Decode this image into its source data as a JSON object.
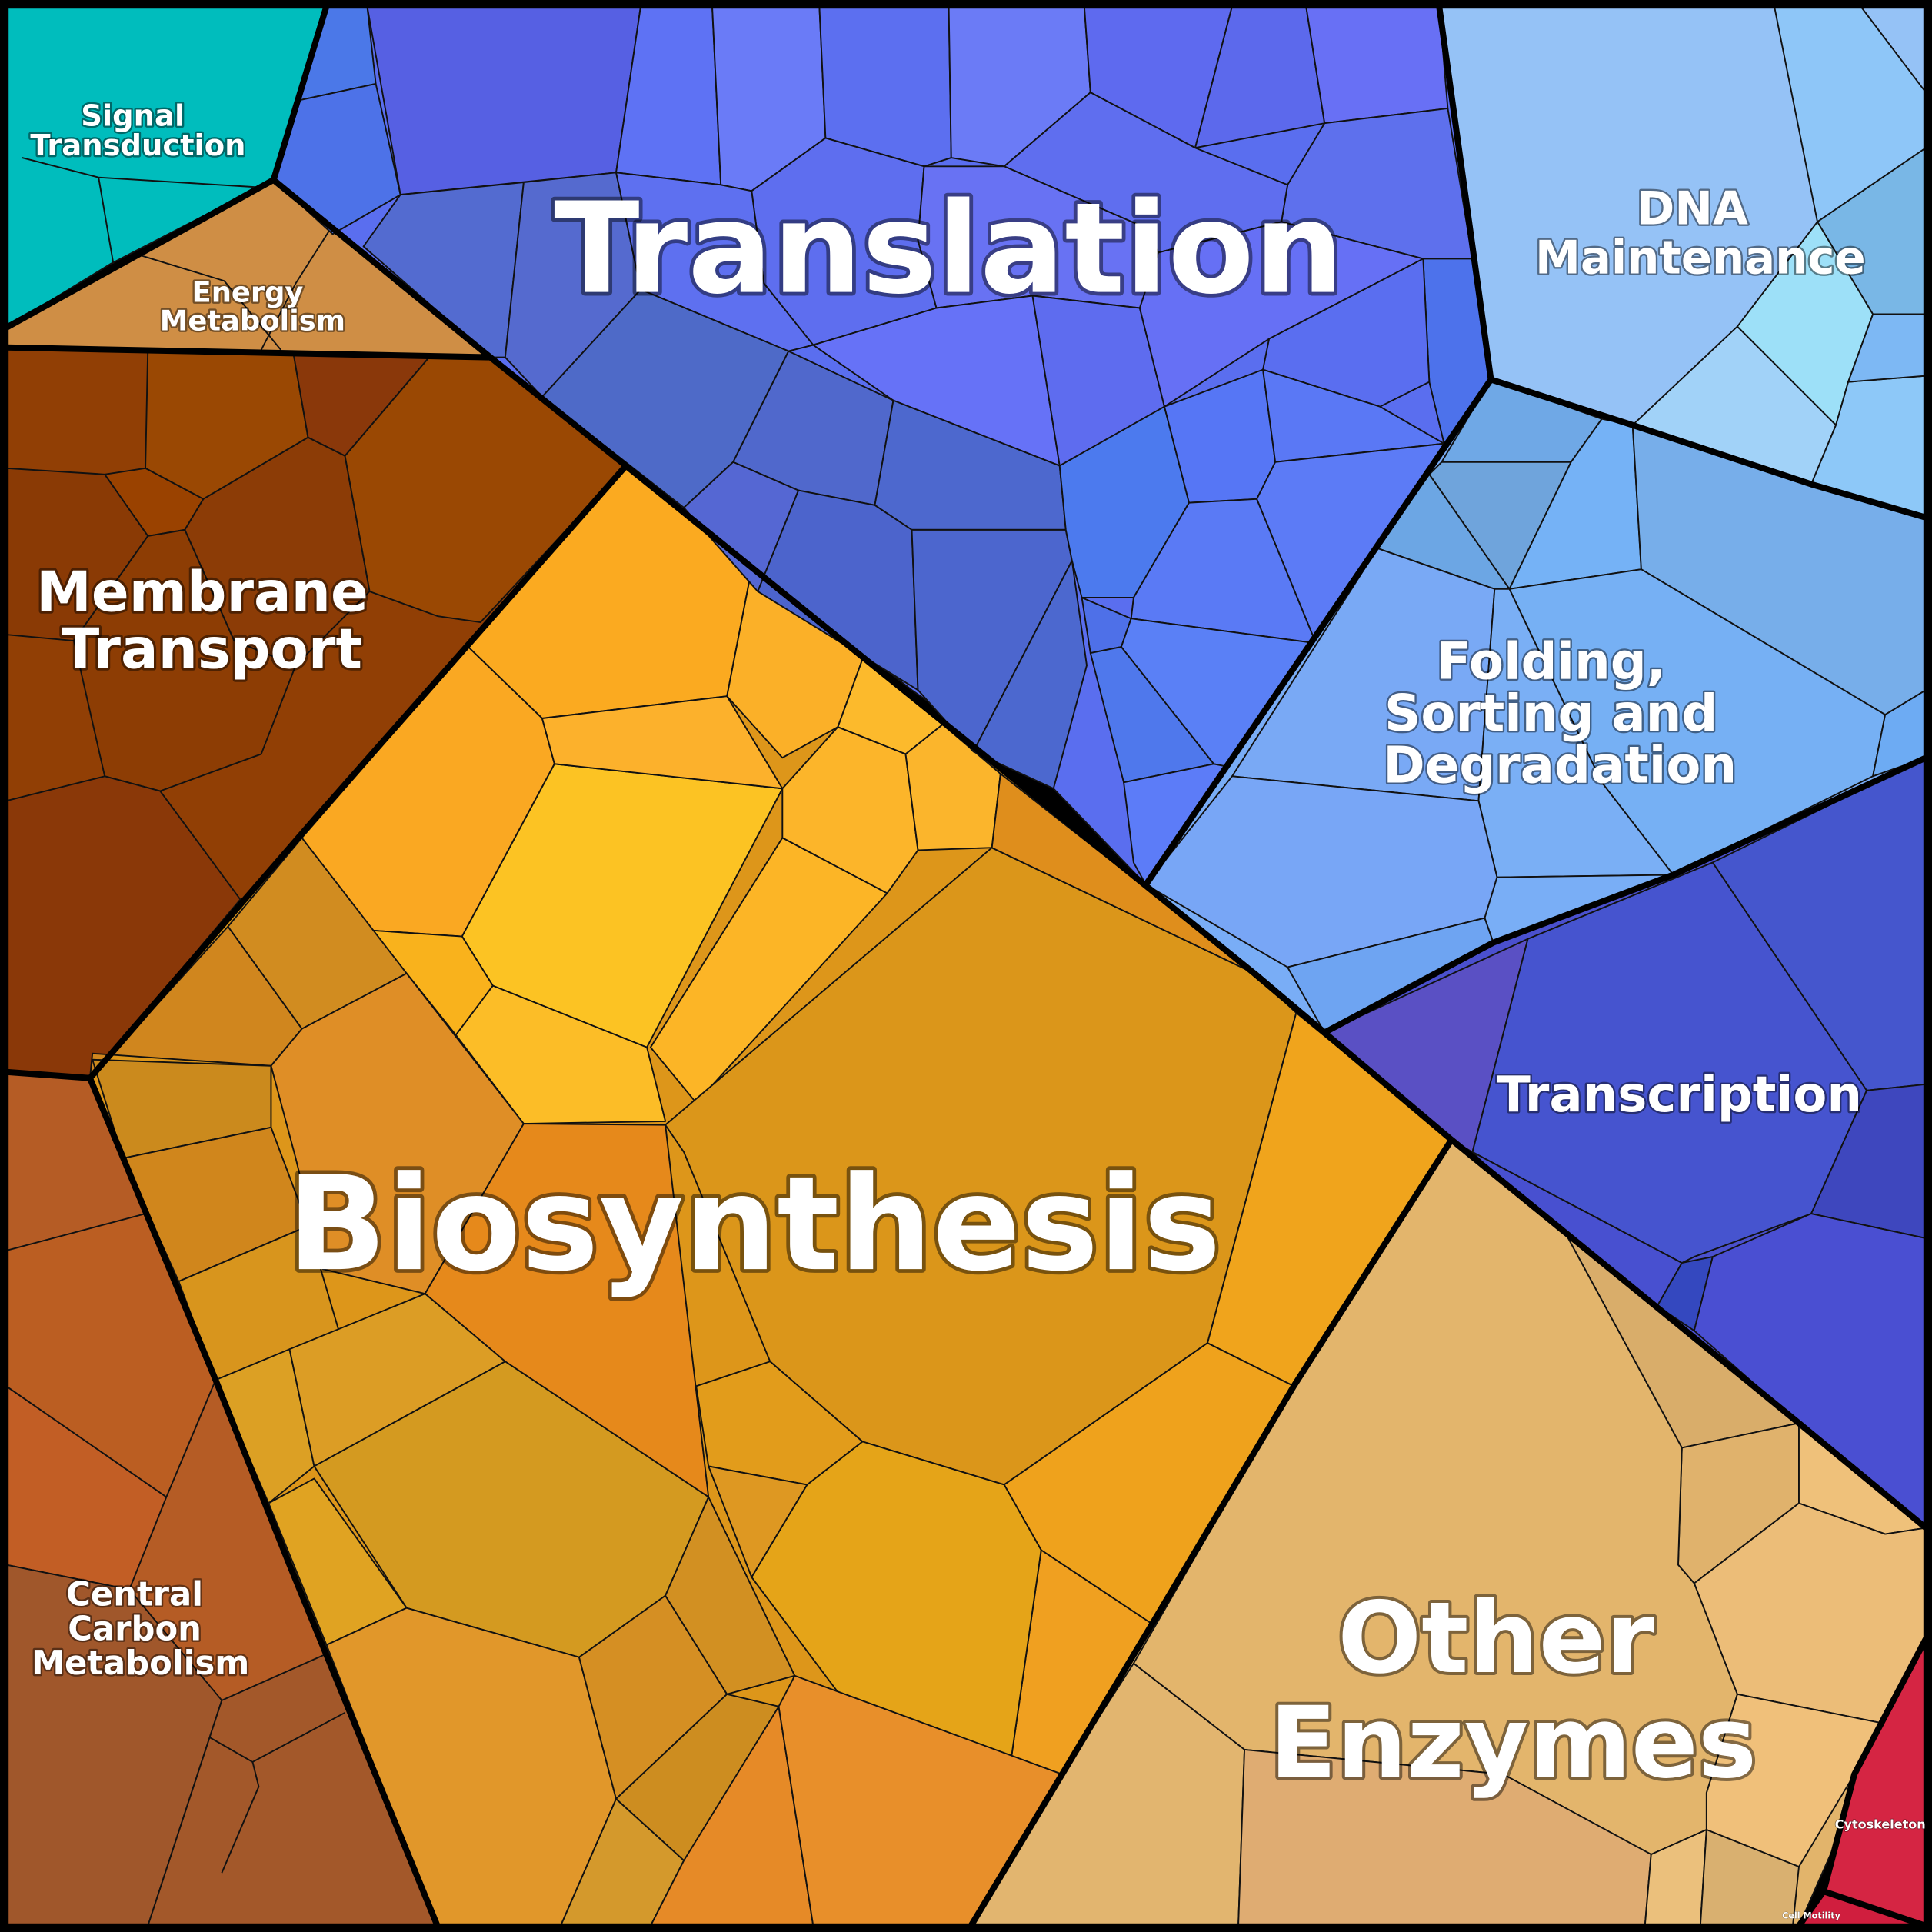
{
  "diagram": {
    "type": "voronoi-treemap",
    "regions": [
      {
        "id": "signal-transduction",
        "lines": [
          "Signal",
          "Transduction"
        ],
        "color": "#00BDBD"
      },
      {
        "id": "energy-metabolism",
        "lines": [
          "Energy",
          "Metabolism"
        ],
        "color": "#CF8E45"
      },
      {
        "id": "membrane-transport",
        "lines": [
          "Membrane",
          "Transport"
        ],
        "color": "#8D3D04"
      },
      {
        "id": "central-carbon-metabolism",
        "lines": [
          "Central",
          "Carbon",
          "Metabolism"
        ],
        "color": "#B55C25"
      },
      {
        "id": "biosynthesis",
        "lines": [
          "Biosynthesis"
        ],
        "color": "#E0A020"
      },
      {
        "id": "translation",
        "lines": [
          "Translation"
        ],
        "color": "#5A6EEF"
      },
      {
        "id": "dna-maintenance",
        "lines": [
          "DNA",
          "Maintenance"
        ],
        "color": "#95C2F6"
      },
      {
        "id": "folding-sorting-degradation",
        "lines": [
          "Folding,",
          "Sorting and",
          "Degradation"
        ],
        "color": "#79ADF6"
      },
      {
        "id": "transcription",
        "lines": [
          "Transcription"
        ],
        "color": "#4A50CE"
      },
      {
        "id": "other-enzymes",
        "lines": [
          "Other",
          "Enzymes"
        ],
        "color": "#E2B46B"
      },
      {
        "id": "cytoskeleton",
        "lines": [
          "Cytoskeleton"
        ],
        "color": "#D52543"
      },
      {
        "id": "cell-motility",
        "lines": [
          "Cell Motility"
        ],
        "color": "#D01E3E"
      }
    ]
  }
}
